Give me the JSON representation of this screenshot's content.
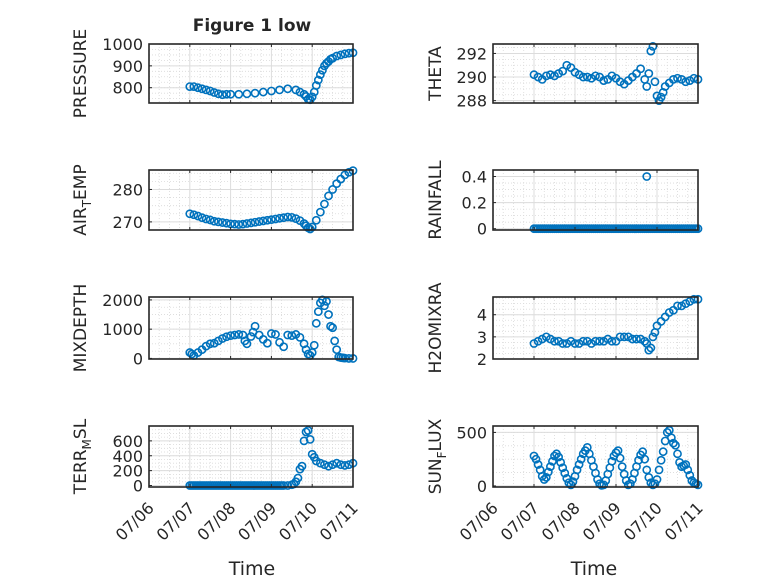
{
  "figure": {
    "title": "Figure 1 low",
    "xlabel": "Time"
  },
  "chart_data": [
    {
      "type": "scatter",
      "ylabel": "PRESSURE",
      "ylabel_sub": "",
      "ylim": [
        730,
        1000
      ],
      "yticks": [
        800,
        900,
        1000
      ],
      "xticks": [
        "07/06",
        "07/07",
        "07/08",
        "07/09",
        "07/10",
        "07/11"
      ],
      "xlim": [
        0,
        5
      ],
      "grid": true,
      "series": [
        {
          "x": [
            1.0,
            1.1,
            1.2,
            1.3,
            1.4,
            1.5,
            1.6,
            1.7,
            1.8,
            1.9,
            2.0,
            2.2,
            2.4,
            2.6,
            2.8,
            3.0,
            3.2,
            3.4,
            3.6,
            3.7,
            3.8,
            3.85,
            3.9,
            3.95,
            4.0,
            4.05,
            4.1,
            4.15,
            4.2,
            4.25,
            4.3,
            4.35,
            4.4,
            4.45,
            4.5,
            4.6,
            4.7,
            4.8,
            4.9,
            5.0
          ],
          "y": [
            805,
            805,
            800,
            795,
            790,
            785,
            778,
            772,
            768,
            770,
            770,
            770,
            772,
            775,
            780,
            785,
            790,
            795,
            790,
            780,
            770,
            760,
            748,
            745,
            758,
            780,
            810,
            835,
            860,
            880,
            900,
            912,
            920,
            930,
            935,
            945,
            950,
            955,
            958,
            960
          ]
        }
      ]
    },
    {
      "type": "scatter",
      "ylabel": "THETA",
      "ylabel_sub": "",
      "ylim": [
        287.8,
        292.8
      ],
      "yticks": [
        288,
        290,
        292
      ],
      "xticks": [
        "07/06",
        "07/07",
        "07/08",
        "07/09",
        "07/10",
        "07/11"
      ],
      "xlim": [
        0,
        5
      ],
      "grid": true,
      "series": [
        {
          "x": [
            1.0,
            1.1,
            1.2,
            1.3,
            1.4,
            1.5,
            1.6,
            1.7,
            1.8,
            1.9,
            2.0,
            2.1,
            2.2,
            2.3,
            2.4,
            2.5,
            2.6,
            2.7,
            2.8,
            2.9,
            3.0,
            3.1,
            3.2,
            3.3,
            3.4,
            3.5,
            3.6,
            3.7,
            3.75,
            3.8,
            3.85,
            3.9,
            3.95,
            4.0,
            4.05,
            4.1,
            4.15,
            4.2,
            4.3,
            4.4,
            4.5,
            4.6,
            4.7,
            4.8,
            4.9,
            5.0
          ],
          "y": [
            290.2,
            290.0,
            289.8,
            290.1,
            290.2,
            290.1,
            290.3,
            290.5,
            291.0,
            290.8,
            290.4,
            290.2,
            290.0,
            290.0,
            289.9,
            290.1,
            290.0,
            289.7,
            289.8,
            290.1,
            289.9,
            289.6,
            289.4,
            289.7,
            290.0,
            290.3,
            290.7,
            289.8,
            289.2,
            290.3,
            292.2,
            292.6,
            289.6,
            288.4,
            288.0,
            288.3,
            288.7,
            289.2,
            289.5,
            289.8,
            289.9,
            289.8,
            289.6,
            289.7,
            289.9,
            289.8
          ]
        }
      ]
    },
    {
      "type": "scatter",
      "ylabel": "AIR",
      "ylabel_sub": "T",
      "ylabel_suffix": "EMP",
      "ylim": [
        267.5,
        286
      ],
      "yticks": [
        270,
        280
      ],
      "xticks": [
        "07/06",
        "07/07",
        "07/08",
        "07/09",
        "07/10",
        "07/11"
      ],
      "xlim": [
        0,
        5
      ],
      "grid": true,
      "series": [
        {
          "x": [
            1.0,
            1.1,
            1.2,
            1.3,
            1.4,
            1.5,
            1.6,
            1.7,
            1.8,
            1.9,
            2.0,
            2.1,
            2.2,
            2.3,
            2.4,
            2.5,
            2.6,
            2.7,
            2.8,
            2.9,
            3.0,
            3.1,
            3.2,
            3.3,
            3.4,
            3.5,
            3.6,
            3.7,
            3.8,
            3.85,
            3.9,
            3.95,
            4.0,
            4.1,
            4.2,
            4.3,
            4.4,
            4.5,
            4.6,
            4.7,
            4.8,
            4.9,
            5.0
          ],
          "y": [
            272.5,
            272.2,
            271.8,
            271.3,
            270.9,
            270.6,
            270.2,
            270.0,
            269.8,
            269.6,
            269.4,
            269.3,
            269.2,
            269.3,
            269.5,
            269.7,
            269.9,
            270.1,
            270.3,
            270.5,
            270.7,
            270.9,
            271.1,
            271.3,
            271.5,
            271.4,
            271.0,
            270.4,
            269.5,
            268.8,
            268.2,
            267.8,
            268.4,
            270.5,
            273.0,
            275.5,
            278.0,
            280.0,
            281.8,
            283.2,
            284.5,
            285.3,
            285.8
          ]
        }
      ]
    },
    {
      "type": "scatter",
      "ylabel": "RAINFALL",
      "ylabel_sub": "",
      "ylim": [
        -0.01,
        0.45
      ],
      "yticks": [
        0,
        0.2,
        0.4
      ],
      "yticklabels": [
        "0",
        "0.2",
        "0.4"
      ],
      "xticks": [
        "07/06",
        "07/07",
        "07/08",
        "07/09",
        "07/10",
        "07/11"
      ],
      "xlim": [
        0,
        5
      ],
      "grid": true,
      "series": [
        {
          "x": [
            1.0,
            1.05,
            1.1,
            1.15,
            1.2,
            1.25,
            1.3,
            1.35,
            1.4,
            1.45,
            1.5,
            1.55,
            1.6,
            1.65,
            1.7,
            1.75,
            1.8,
            1.85,
            1.9,
            1.95,
            2.0,
            2.05,
            2.1,
            2.15,
            2.2,
            2.25,
            2.3,
            2.35,
            2.4,
            2.45,
            2.5,
            2.55,
            2.6,
            2.65,
            2.7,
            2.75,
            2.8,
            2.85,
            2.9,
            2.95,
            3.0,
            3.05,
            3.1,
            3.15,
            3.2,
            3.25,
            3.3,
            3.35,
            3.4,
            3.45,
            3.5,
            3.55,
            3.6,
            3.65,
            3.7,
            3.75,
            3.8,
            3.85,
            3.9,
            3.95,
            4.0,
            4.05,
            4.1,
            4.15,
            4.2,
            4.25,
            4.3,
            4.35,
            4.4,
            4.45,
            4.5,
            4.55,
            4.6,
            4.65,
            4.7,
            4.75,
            4.8,
            4.85,
            4.9,
            4.95,
            5.0,
            3.75
          ],
          "y": [
            0,
            0,
            0,
            0,
            0,
            0,
            0,
            0,
            0,
            0,
            0,
            0,
            0,
            0,
            0,
            0,
            0,
            0,
            0,
            0,
            0,
            0,
            0,
            0,
            0,
            0,
            0,
            0,
            0,
            0,
            0,
            0,
            0,
            0,
            0,
            0,
            0,
            0,
            0,
            0,
            0,
            0,
            0,
            0,
            0,
            0,
            0,
            0,
            0,
            0,
            0,
            0,
            0,
            0,
            0,
            0,
            0,
            0,
            0,
            0,
            0,
            0,
            0,
            0,
            0,
            0,
            0,
            0,
            0,
            0,
            0,
            0,
            0,
            0,
            0,
            0,
            0,
            0,
            0,
            0,
            0,
            0.4
          ]
        }
      ]
    },
    {
      "type": "scatter",
      "ylabel": "MIXDEPTH",
      "ylabel_sub": "",
      "ylim": [
        -20,
        2100
      ],
      "yticks": [
        0,
        1000,
        2000
      ],
      "xticks": [
        "07/06",
        "07/07",
        "07/08",
        "07/09",
        "07/10",
        "07/11"
      ],
      "xlim": [
        0,
        5
      ],
      "grid": true,
      "series": [
        {
          "x": [
            1.0,
            1.05,
            1.1,
            1.2,
            1.3,
            1.4,
            1.5,
            1.6,
            1.7,
            1.8,
            1.9,
            2.0,
            2.1,
            2.2,
            2.3,
            2.35,
            2.4,
            2.5,
            2.55,
            2.6,
            2.7,
            2.8,
            2.9,
            3.0,
            3.1,
            3.2,
            3.3,
            3.4,
            3.5,
            3.6,
            3.7,
            3.8,
            3.85,
            3.9,
            3.95,
            4.0,
            4.05,
            4.1,
            4.15,
            4.2,
            4.25,
            4.3,
            4.35,
            4.4,
            4.45,
            4.5,
            4.55,
            4.6,
            4.65,
            4.7,
            4.75,
            4.8,
            4.9,
            5.0
          ],
          "y": [
            200,
            150,
            100,
            200,
            300,
            420,
            500,
            520,
            600,
            680,
            740,
            780,
            800,
            820,
            800,
            600,
            500,
            750,
            900,
            1100,
            800,
            650,
            520,
            850,
            820,
            550,
            400,
            800,
            780,
            820,
            720,
            500,
            300,
            150,
            100,
            200,
            450,
            1200,
            1600,
            1900,
            2000,
            1800,
            1950,
            1500,
            1100,
            1050,
            600,
            300,
            50,
            30,
            20,
            10,
            0,
            0
          ]
        }
      ]
    },
    {
      "type": "scatter",
      "ylabel": "H2OMIXRA",
      "ylabel_sub": "",
      "ylim": [
        2.0,
        4.8
      ],
      "yticks": [
        2,
        3,
        4
      ],
      "xticks": [
        "07/06",
        "07/07",
        "07/08",
        "07/09",
        "07/10",
        "07/11"
      ],
      "xlim": [
        0,
        5
      ],
      "grid": true,
      "series": [
        {
          "x": [
            1.0,
            1.1,
            1.2,
            1.3,
            1.4,
            1.5,
            1.6,
            1.7,
            1.8,
            1.9,
            2.0,
            2.1,
            2.2,
            2.3,
            2.4,
            2.5,
            2.6,
            2.7,
            2.8,
            2.9,
            3.0,
            3.1,
            3.2,
            3.3,
            3.4,
            3.5,
            3.6,
            3.7,
            3.75,
            3.8,
            3.85,
            3.9,
            3.95,
            4.0,
            4.1,
            4.2,
            4.3,
            4.4,
            4.5,
            4.6,
            4.7,
            4.8,
            4.9,
            5.0
          ],
          "y": [
            2.7,
            2.8,
            2.9,
            3.0,
            2.9,
            2.8,
            2.8,
            2.7,
            2.7,
            2.8,
            2.7,
            2.7,
            2.8,
            2.8,
            2.7,
            2.8,
            2.8,
            2.8,
            2.9,
            2.8,
            2.8,
            3.0,
            3.0,
            3.0,
            2.9,
            2.9,
            2.9,
            2.8,
            2.7,
            2.4,
            2.5,
            3.0,
            3.2,
            3.5,
            3.7,
            3.9,
            4.1,
            4.2,
            4.4,
            4.4,
            4.5,
            4.6,
            4.7,
            4.7
          ]
        }
      ]
    },
    {
      "type": "scatter",
      "ylabel": "TERR",
      "ylabel_sub": "M",
      "ylabel_suffix": "SL",
      "ylim": [
        -20,
        800
      ],
      "yticks": [
        0,
        200,
        400,
        600
      ],
      "xticks": [
        "07/06",
        "07/07",
        "07/08",
        "07/09",
        "07/10",
        "07/11"
      ],
      "xlim": [
        0,
        5
      ],
      "grid": true,
      "series": [
        {
          "x": [
            1.0,
            1.05,
            1.1,
            1.15,
            1.2,
            1.25,
            1.3,
            1.35,
            1.4,
            1.45,
            1.5,
            1.55,
            1.6,
            1.65,
            1.7,
            1.75,
            1.8,
            1.85,
            1.9,
            1.95,
            2.0,
            2.05,
            2.1,
            2.15,
            2.2,
            2.25,
            2.3,
            2.35,
            2.4,
            2.45,
            2.5,
            2.55,
            2.6,
            2.65,
            2.7,
            2.75,
            2.8,
            2.85,
            2.9,
            2.95,
            3.0,
            3.05,
            3.1,
            3.15,
            3.2,
            3.25,
            3.3,
            3.4,
            3.5,
            3.55,
            3.6,
            3.65,
            3.7,
            3.75,
            3.8,
            3.85,
            3.9,
            3.95,
            4.0,
            4.05,
            4.1,
            4.2,
            4.3,
            4.4,
            4.5,
            4.6,
            4.7,
            4.8,
            4.9,
            5.0
          ],
          "y": [
            0,
            0,
            0,
            0,
            0,
            0,
            0,
            0,
            0,
            0,
            0,
            0,
            0,
            0,
            0,
            0,
            0,
            0,
            0,
            0,
            0,
            0,
            0,
            0,
            0,
            0,
            0,
            0,
            0,
            0,
            0,
            0,
            0,
            0,
            0,
            0,
            0,
            0,
            0,
            0,
            0,
            0,
            0,
            0,
            0,
            0,
            0,
            0,
            10,
            20,
            50,
            100,
            220,
            260,
            600,
            720,
            740,
            620,
            420,
            380,
            330,
            300,
            280,
            260,
            280,
            300,
            280,
            270,
            280,
            300
          ]
        }
      ]
    },
    {
      "type": "scatter",
      "ylabel": "SUN",
      "ylabel_sub": "F",
      "ylabel_suffix": "LUX",
      "ylim": [
        -10,
        560
      ],
      "yticks": [
        0,
        500
      ],
      "xticks": [
        "07/06",
        "07/07",
        "07/08",
        "07/09",
        "07/10",
        "07/11"
      ],
      "xlim": [
        0,
        5
      ],
      "grid": true,
      "series": [
        {
          "x": [
            1.0,
            1.05,
            1.1,
            1.15,
            1.2,
            1.25,
            1.3,
            1.35,
            1.4,
            1.45,
            1.5,
            1.55,
            1.6,
            1.65,
            1.7,
            1.75,
            1.8,
            1.85,
            1.9,
            1.95,
            2.0,
            2.05,
            2.1,
            2.15,
            2.2,
            2.25,
            2.3,
            2.35,
            2.4,
            2.45,
            2.5,
            2.55,
            2.6,
            2.65,
            2.7,
            2.75,
            2.8,
            2.85,
            2.9,
            2.95,
            3.0,
            3.05,
            3.1,
            3.15,
            3.2,
            3.25,
            3.3,
            3.35,
            3.4,
            3.45,
            3.5,
            3.55,
            3.6,
            3.65,
            3.7,
            3.75,
            3.8,
            3.85,
            3.9,
            3.95,
            4.0,
            4.05,
            4.1,
            4.15,
            4.2,
            4.25,
            4.3,
            4.35,
            4.4,
            4.45,
            4.5,
            4.55,
            4.6,
            4.65,
            4.7,
            4.75,
            4.8,
            4.85,
            4.9,
            4.95,
            5.0
          ],
          "y": [
            280,
            250,
            200,
            150,
            90,
            60,
            80,
            130,
            180,
            230,
            280,
            300,
            270,
            220,
            170,
            120,
            70,
            30,
            10,
            40,
            90,
            150,
            200,
            250,
            300,
            330,
            360,
            300,
            240,
            180,
            120,
            60,
            20,
            5,
            10,
            50,
            110,
            170,
            230,
            280,
            310,
            330,
            260,
            180,
            110,
            50,
            10,
            20,
            60,
            120,
            180,
            240,
            290,
            320,
            250,
            150,
            80,
            30,
            10,
            20,
            60,
            150,
            240,
            320,
            420,
            500,
            520,
            450,
            400,
            380,
            300,
            220,
            180,
            190,
            200,
            150,
            100,
            50,
            30,
            20,
            10
          ]
        }
      ]
    }
  ]
}
